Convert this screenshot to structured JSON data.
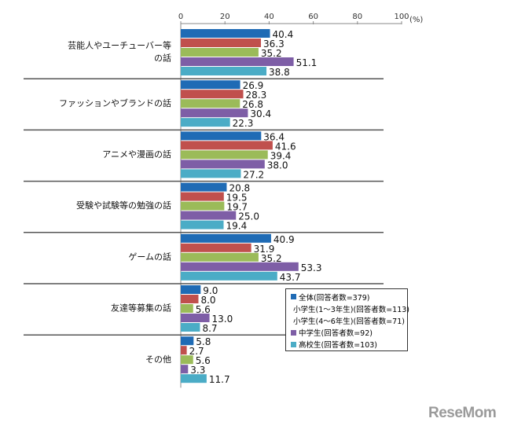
{
  "chart_data": {
    "type": "bar",
    "orientation": "horizontal",
    "unit_label": "(%)",
    "xlim": [
      0,
      100
    ],
    "ticks": [
      0,
      20,
      40,
      60,
      80,
      100
    ],
    "categories": [
      "芸能人やユーチューバー等\nの話",
      "ファッションやブランドの話",
      "アニメや漫画の話",
      "受験や試験等の勉強の話",
      "ゲームの話",
      "友達等募集の話",
      "その他"
    ],
    "series": [
      {
        "name": "全体(回答者数=379)",
        "color": "#1f6bb5",
        "values": [
          40.4,
          26.9,
          36.4,
          20.8,
          40.9,
          9.0,
          5.8
        ]
      },
      {
        "name": "小学生(1～3年生)(回答者数=113)",
        "color": "#c0504d",
        "values": [
          36.3,
          28.3,
          41.6,
          19.5,
          31.9,
          8.0,
          2.7
        ]
      },
      {
        "name": "小学生(4～6年生)(回答者数=71)",
        "color": "#9bbb59",
        "values": [
          35.2,
          26.8,
          39.4,
          19.7,
          35.2,
          5.6,
          5.6
        ]
      },
      {
        "name": "中学生(回答者数=92)",
        "color": "#7e5ea6",
        "values": [
          51.1,
          30.4,
          38.0,
          25.0,
          53.3,
          13.0,
          3.3
        ]
      },
      {
        "name": "高校生(回答者数=103)",
        "color": "#4bacc6",
        "values": [
          38.8,
          22.3,
          27.2,
          19.4,
          43.7,
          8.7,
          11.7
        ]
      }
    ],
    "legend_position": "bottom-right"
  },
  "logo": "ReseMom"
}
